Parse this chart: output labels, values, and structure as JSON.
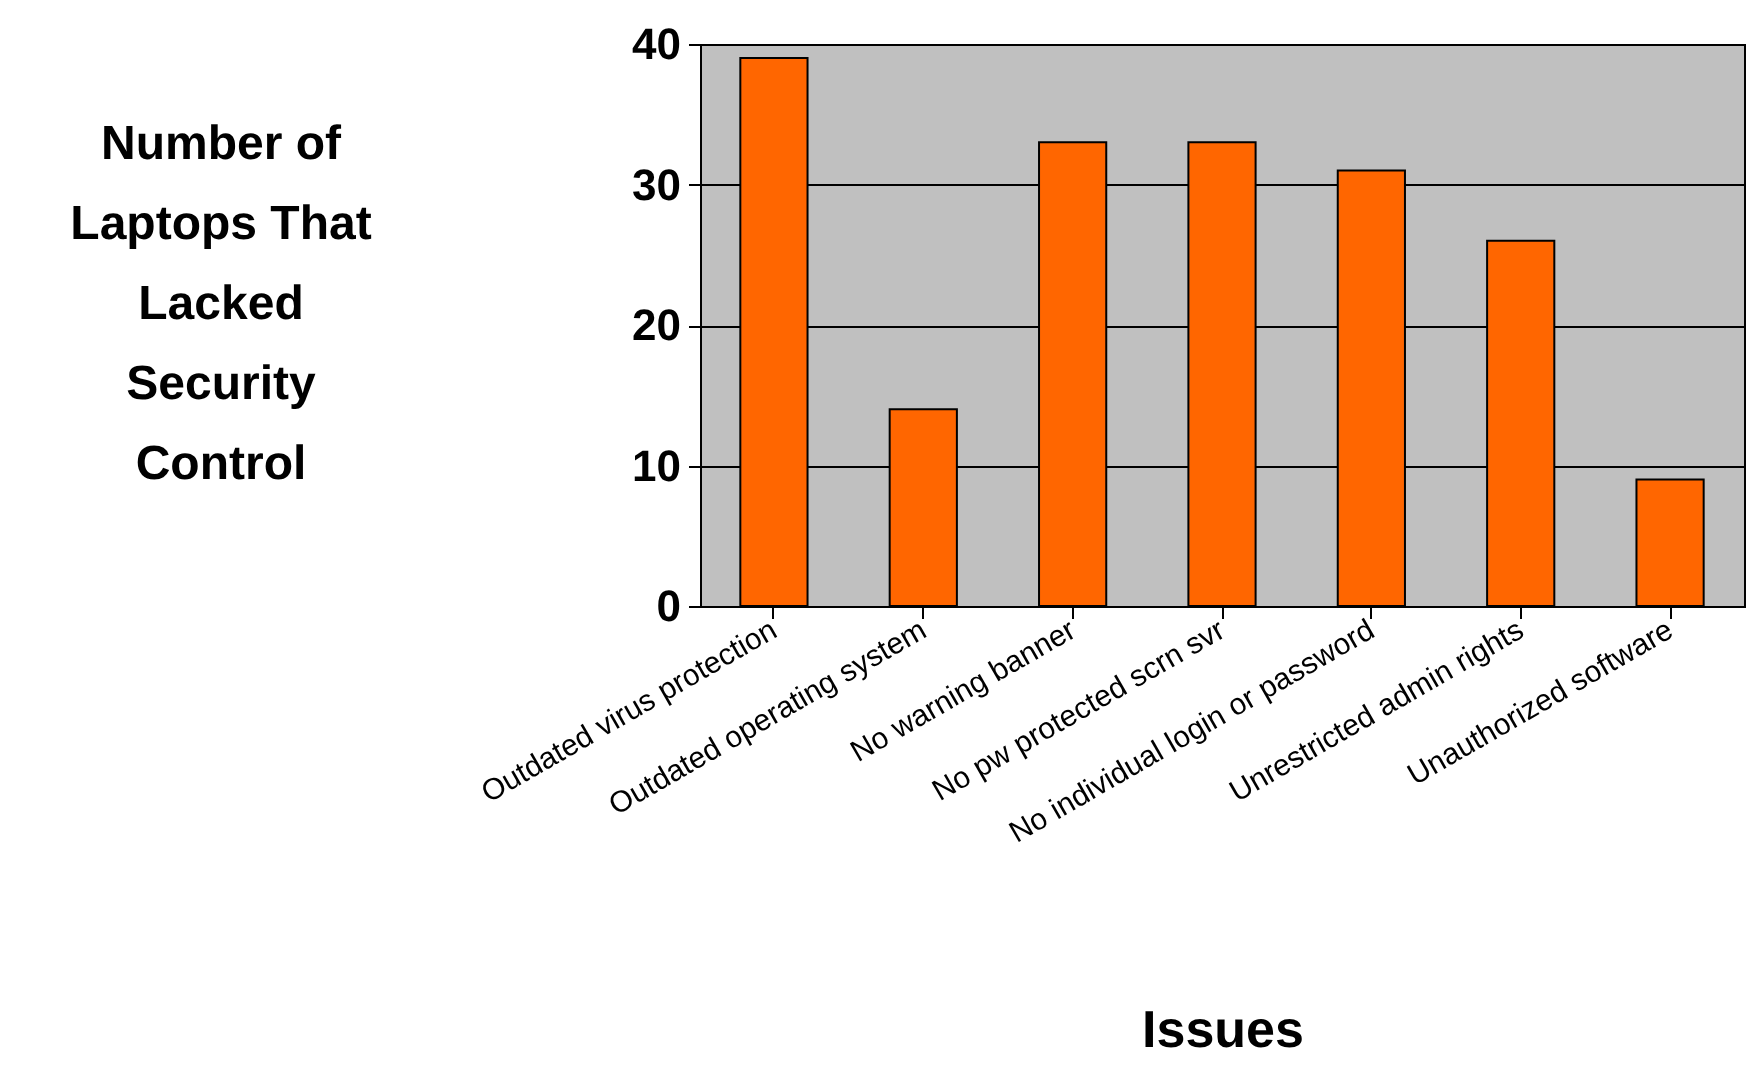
{
  "chart_data": {
    "type": "bar",
    "xlabel": "Issues",
    "ylabel": "Number of Laptops That Lacked Security Control",
    "categories": [
      "Outdated virus protection",
      "Outdated operating system",
      "No warning banner",
      "No pw protected scrn svr",
      "No individual login or password",
      "Unrestricted admin rights",
      "Unauthorized software"
    ],
    "values": [
      39,
      14,
      33,
      33,
      31,
      26,
      9
    ],
    "color": "#ff6600",
    "ylim": [
      0,
      40
    ],
    "yticks": [
      0,
      10,
      20,
      30,
      40
    ],
    "grid": "y"
  }
}
